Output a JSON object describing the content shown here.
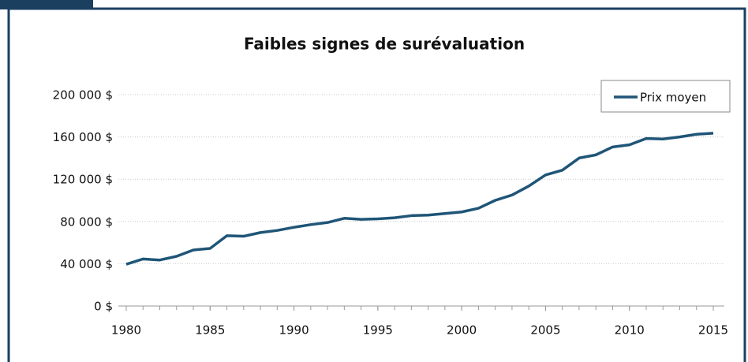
{
  "chart_data": {
    "type": "line",
    "title": "Faibles signes de surévaluation",
    "x": [
      1980,
      1981,
      1982,
      1983,
      1984,
      1985,
      1986,
      1987,
      1988,
      1989,
      1990,
      1991,
      1992,
      1993,
      1994,
      1995,
      1996,
      1997,
      1998,
      1999,
      2000,
      2001,
      2002,
      2003,
      2004,
      2005,
      2006,
      2007,
      2008,
      2009,
      2010,
      2011,
      2012,
      2013,
      2014,
      2015
    ],
    "series": [
      {
        "name": "Prix moyen",
        "color": "#1f5577",
        "values": [
          39500,
          44500,
          43500,
          47000,
          53000,
          54500,
          66500,
          66000,
          69500,
          71500,
          74500,
          77000,
          79000,
          83000,
          82000,
          82500,
          83500,
          85500,
          86000,
          87500,
          89000,
          92500,
          100000,
          105000,
          113500,
          124000,
          128500,
          140000,
          143000,
          150500,
          152500,
          158500,
          158000,
          160000,
          162500,
          163500
        ]
      }
    ],
    "xlim": [
      1980,
      2015
    ],
    "xticks": [
      1980,
      1985,
      1990,
      1995,
      2000,
      2005,
      2010,
      2015
    ],
    "ylim": [
      0,
      200000
    ],
    "yticks": [
      {
        "value": 0,
        "label": "0 $"
      },
      {
        "value": 40000,
        "label": "40 000 $"
      },
      {
        "value": 80000,
        "label": "80 000 $"
      },
      {
        "value": 120000,
        "label": "120 000 $"
      },
      {
        "value": 160000,
        "label": "160 000 $"
      },
      {
        "value": 200000,
        "label": "200 000 $"
      }
    ],
    "grid": true,
    "legend": "upper right"
  }
}
